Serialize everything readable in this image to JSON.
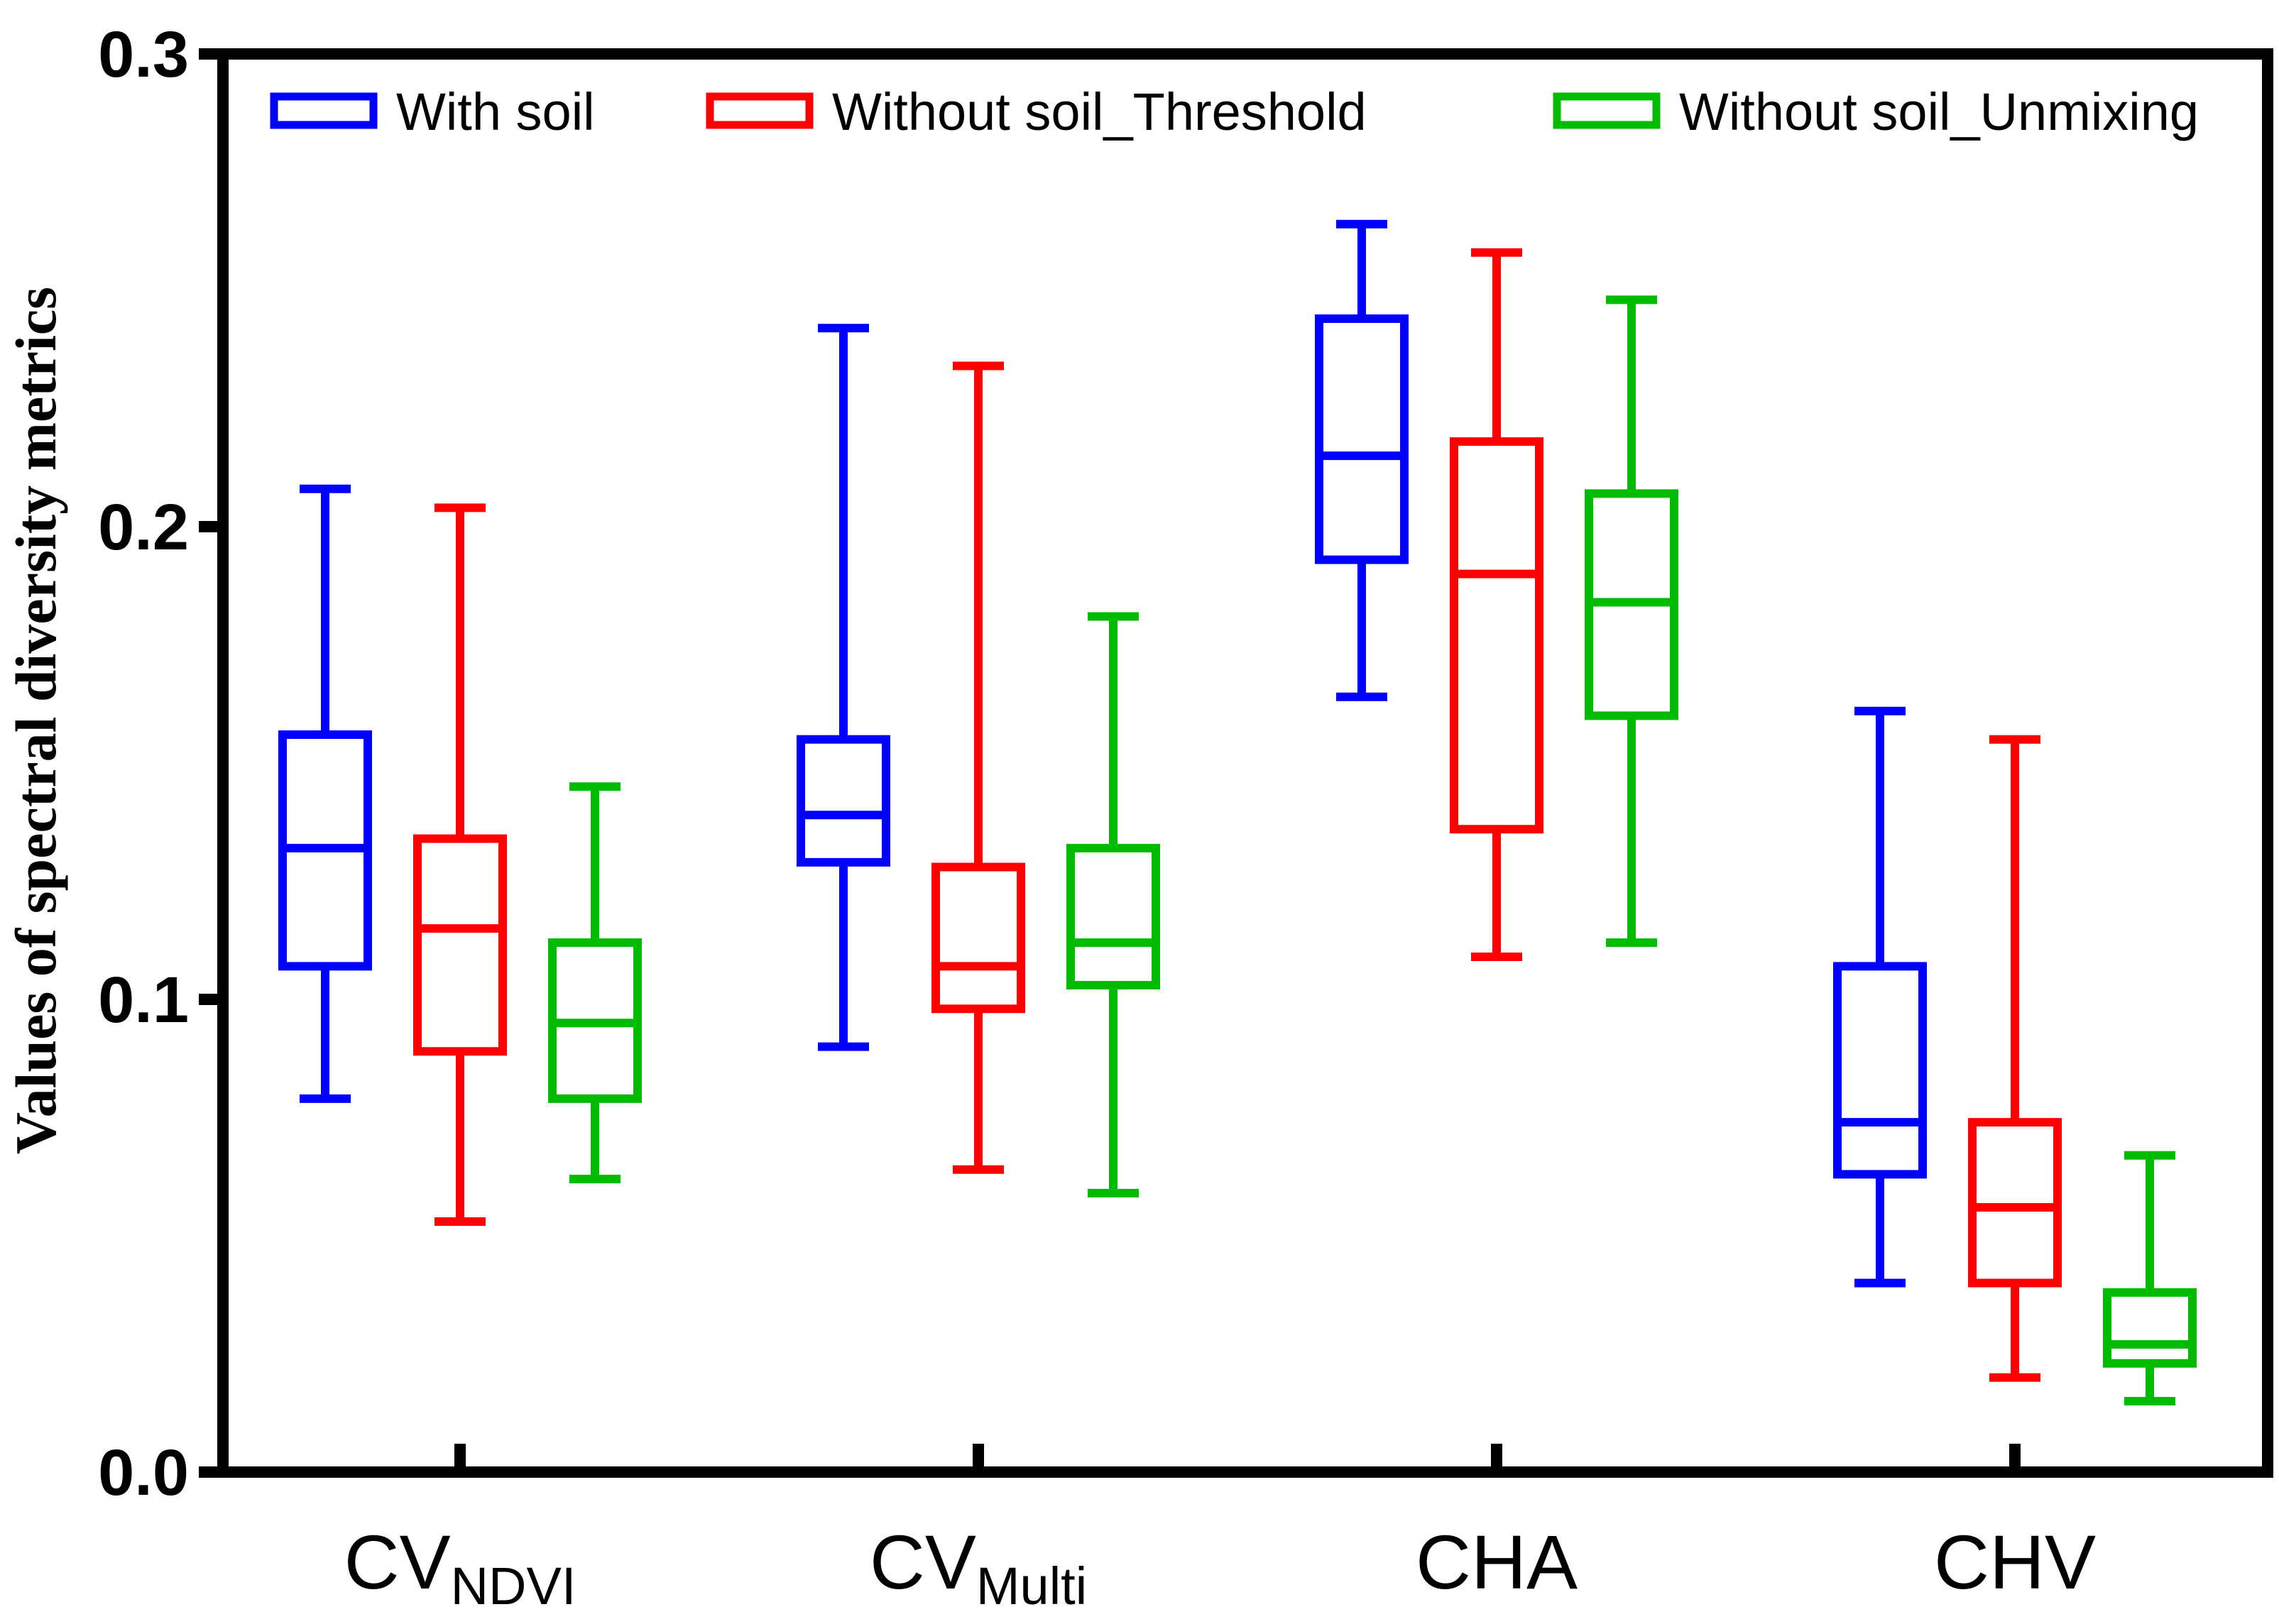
{
  "chart_data": {
    "type": "boxplot",
    "title": "",
    "xlabel": "",
    "ylabel": "Values of spectral diversity metrics",
    "ylim": [
      0.0,
      0.3
    ],
    "yticks": [
      "0.0",
      "0.1",
      "0.2",
      "0.3"
    ],
    "grid": false,
    "legend_position": "top",
    "categories": [
      {
        "main": "CV",
        "sub": "NDVI"
      },
      {
        "main": "CV",
        "sub": "Multi"
      },
      {
        "main": "CHA",
        "sub": ""
      },
      {
        "main": "CHV",
        "sub": ""
      }
    ],
    "series": [
      {
        "name": "With soil",
        "color": "#0000ff",
        "boxes": [
          {
            "min": 0.079,
            "q1": 0.107,
            "median": 0.132,
            "q3": 0.156,
            "max": 0.208
          },
          {
            "min": 0.09,
            "q1": 0.129,
            "median": 0.139,
            "q3": 0.155,
            "max": 0.242
          },
          {
            "min": 0.164,
            "q1": 0.193,
            "median": 0.215,
            "q3": 0.244,
            "max": 0.264
          },
          {
            "min": 0.04,
            "q1": 0.063,
            "median": 0.074,
            "q3": 0.107,
            "max": 0.161
          }
        ]
      },
      {
        "name": "Without soil_Threshold",
        "color": "#ff0000",
        "boxes": [
          {
            "min": 0.053,
            "q1": 0.089,
            "median": 0.115,
            "q3": 0.134,
            "max": 0.204
          },
          {
            "min": 0.064,
            "q1": 0.098,
            "median": 0.107,
            "q3": 0.128,
            "max": 0.234
          },
          {
            "min": 0.109,
            "q1": 0.136,
            "median": 0.19,
            "q3": 0.218,
            "max": 0.258
          },
          {
            "min": 0.02,
            "q1": 0.04,
            "median": 0.056,
            "q3": 0.074,
            "max": 0.155
          }
        ]
      },
      {
        "name": "Without soil_Unmixing",
        "color": "#00bb00",
        "boxes": [
          {
            "min": 0.062,
            "q1": 0.079,
            "median": 0.095,
            "q3": 0.112,
            "max": 0.145
          },
          {
            "min": 0.059,
            "q1": 0.103,
            "median": 0.112,
            "q3": 0.132,
            "max": 0.181
          },
          {
            "min": 0.112,
            "q1": 0.16,
            "median": 0.184,
            "q3": 0.207,
            "max": 0.248
          },
          {
            "min": 0.015,
            "q1": 0.023,
            "median": 0.027,
            "q3": 0.038,
            "max": 0.067
          }
        ]
      }
    ]
  }
}
